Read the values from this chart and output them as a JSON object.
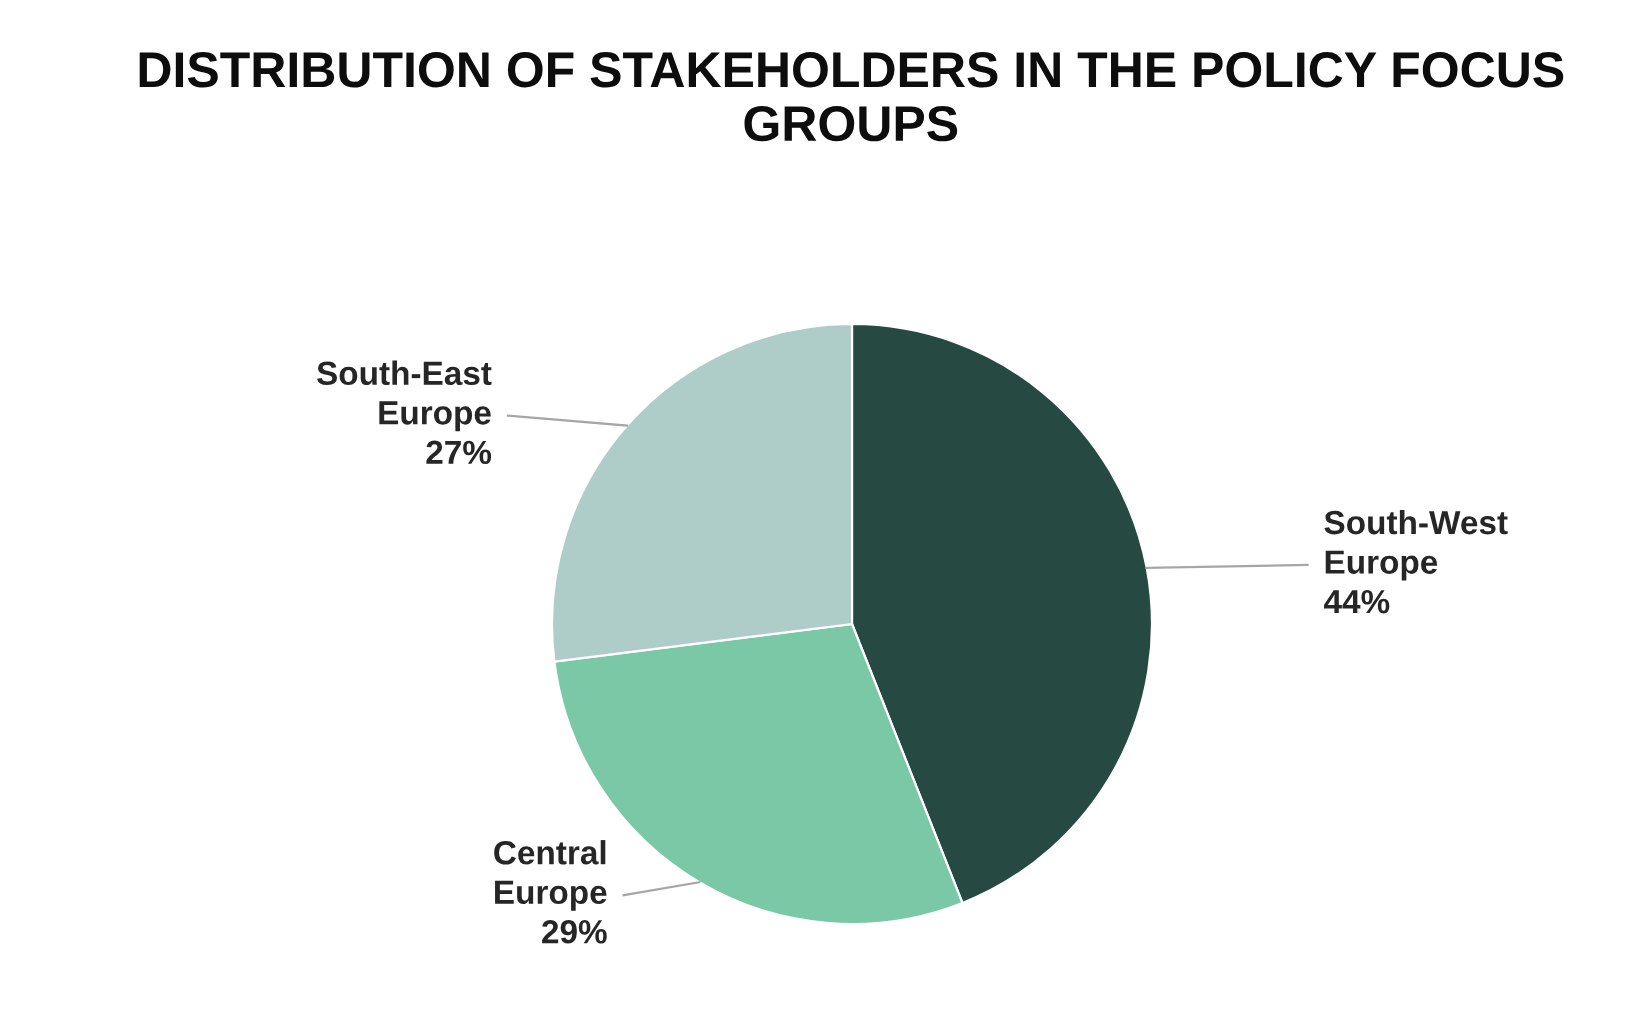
{
  "chart_data": {
    "type": "pie",
    "title": "DISTRIBUTION OF STAKEHOLDERS IN THE POLICY FOCUS GROUPS",
    "categories": [
      "South-West Europe",
      "Central Europe",
      "South-East Europe"
    ],
    "values": [
      44,
      29,
      27
    ],
    "colors": [
      "#264a42",
      "#7ac8a6",
      "#aeccc8"
    ],
    "value_labels": [
      "44%",
      "29%",
      "27%"
    ],
    "legend": false
  }
}
